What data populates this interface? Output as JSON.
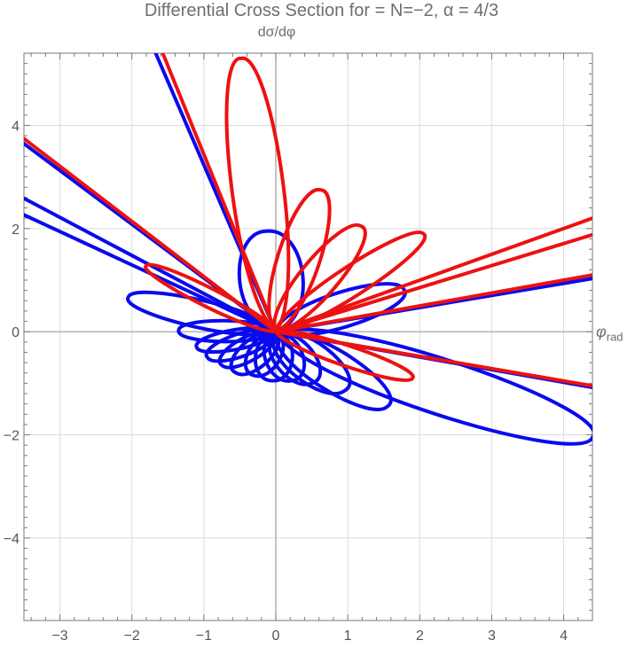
{
  "chart_data": {
    "type": "polar-curves",
    "title": "Differential Cross Section for = N=−2, α = 4/3",
    "ylabel": "dσ/dφ",
    "xlabel_main": "φ",
    "xlabel_sub": "rad",
    "xlim": [
      -3.5,
      4.4
    ],
    "ylim": [
      -5.6,
      5.4
    ],
    "xticks": [
      -3,
      -2,
      -1,
      0,
      1,
      2,
      3,
      4
    ],
    "yticks": [
      -4,
      -2,
      0,
      2,
      4
    ],
    "xtick_labels": [
      "−3",
      "−2",
      "−1",
      "0",
      "1",
      "2",
      "3",
      "4"
    ],
    "ytick_labels": [
      "−4",
      "−2",
      "0",
      "2",
      "4"
    ],
    "grid": true,
    "series": [
      {
        "name": "blue curve",
        "color": "#0a0aee",
        "lines": [
          {
            "to": [
              -3.6,
              3.75
            ]
          },
          {
            "to": [
              -3.6,
              2.66
            ]
          },
          {
            "to": [
              -3.6,
              2.33
            ]
          },
          {
            "to": [
              -1.7,
              5.5
            ]
          },
          {
            "to": [
              4.4,
              1.03
            ]
          },
          {
            "to": [
              4.4,
              -1.08
            ]
          }
        ],
        "petals": [
          {
            "tip": [
              -0.12,
              1.95
            ],
            "width": 0.3
          },
          {
            "tip": [
              1.78,
              0.82
            ],
            "width": 0.22
          },
          {
            "tip": [
              -2.05,
              0.67
            ],
            "width": 0.16
          },
          {
            "tip": [
              -1.35,
              0.02
            ],
            "width": 0.2
          },
          {
            "tip": [
              -1.1,
              -0.3
            ],
            "width": 0.22
          },
          {
            "tip": [
              -0.95,
              -0.5
            ],
            "width": 0.26
          },
          {
            "tip": [
              -0.75,
              -0.65
            ],
            "width": 0.28
          },
          {
            "tip": [
              -0.55,
              -0.8
            ],
            "width": 0.32
          },
          {
            "tip": [
              -0.3,
              -0.85
            ],
            "width": 0.34
          },
          {
            "tip": [
              -0.05,
              -0.95
            ],
            "width": 0.36
          },
          {
            "tip": [
              0.22,
              -0.95
            ],
            "width": 0.36
          },
          {
            "tip": [
              0.5,
              -1.0
            ],
            "width": 0.34
          },
          {
            "tip": [
              0.95,
              -1.15
            ],
            "width": 0.3
          },
          {
            "tip": [
              1.55,
              -1.45
            ],
            "width": 0.22
          },
          {
            "tip": [
              4.4,
              -2.05
            ],
            "width": 0.14
          }
        ]
      },
      {
        "name": "red curve",
        "color": "#ee1111",
        "lines": [
          {
            "to": [
              -3.6,
              3.85
            ]
          },
          {
            "to": [
              -1.6,
              5.5
            ]
          },
          {
            "to": [
              4.4,
              2.2
            ]
          },
          {
            "to": [
              4.4,
              1.88
            ]
          },
          {
            "to": [
              4.4,
              1.1
            ]
          },
          {
            "to": [
              4.4,
              -1.05
            ]
          }
        ],
        "petals": [
          {
            "tip": [
              -0.48,
              5.3
            ],
            "width": 0.09
          },
          {
            "tip": [
              0.62,
              2.75
            ],
            "width": 0.14
          },
          {
            "tip": [
              1.18,
              2.05
            ],
            "width": 0.16
          },
          {
            "tip": [
              2.05,
              1.9
            ],
            "width": 0.12
          },
          {
            "tip": [
              -1.8,
              1.28
            ],
            "width": 0.1
          },
          {
            "tip": [
              1.9,
              -0.9
            ],
            "width": 0.12
          }
        ]
      }
    ]
  }
}
